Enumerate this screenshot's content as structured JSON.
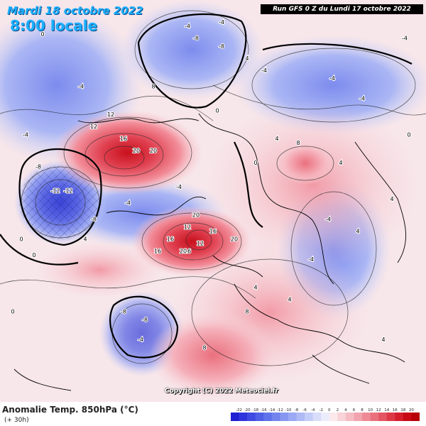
{
  "header": {
    "date_line": "Mardi 18 octobre 2022",
    "time_line": "8:00 locale",
    "run_info": "Run GFS 0 Z du Lundi 17 octobre 2022",
    "copyright": "Copyright (C) 2022 Meteociel.fr"
  },
  "footer": {
    "title": "Anomalie Temp. 850hPa (°C)",
    "subtitle": "(+ 30h)"
  },
  "legend": {
    "ticks": [
      "-22",
      "-20",
      "-18",
      "-16",
      "-14",
      "-12",
      "-10",
      "-8",
      "-6",
      "-4",
      "-2",
      "0",
      "2",
      "4",
      "6",
      "8",
      "10",
      "12",
      "14",
      "16",
      "18",
      "20"
    ],
    "colors": [
      "#1e1ed2",
      "#2e34dc",
      "#3e4ae2",
      "#4f5fe6",
      "#6072ea",
      "#7384ee",
      "#8796f0",
      "#9ba8f3",
      "#afbaf5",
      "#c4ccf8",
      "#d8ddfa",
      "#ebedfc",
      "#fbe9ec",
      "#f8d3d8",
      "#f5bcc4",
      "#f2a4ae",
      "#ee8a96",
      "#ea707d",
      "#e45462",
      "#dd3846",
      "#d41e2c",
      "#c80a16",
      "#b80008"
    ]
  },
  "map": {
    "anomaly_labels": [
      {
        "text": "12",
        "x": 22,
        "y": 32
      },
      {
        "text": "16",
        "x": 29,
        "y": 35
      },
      {
        "text": "20",
        "x": 32,
        "y": 38
      },
      {
        "text": "20",
        "x": 36,
        "y": 38
      },
      {
        "text": "12",
        "x": 26,
        "y": 29
      },
      {
        "text": "-12",
        "x": 13,
        "y": 48
      },
      {
        "text": "-12",
        "x": 16,
        "y": 48
      },
      {
        "text": "-8",
        "x": 9,
        "y": 42
      },
      {
        "text": "-8",
        "x": 22,
        "y": 55
      },
      {
        "text": "-4",
        "x": 6,
        "y": 34
      },
      {
        "text": "-4",
        "x": 19,
        "y": 22
      },
      {
        "text": "-4",
        "x": 30,
        "y": 51
      },
      {
        "text": "-4",
        "x": 42,
        "y": 47
      },
      {
        "text": "-4",
        "x": 78,
        "y": 20
      },
      {
        "text": "-4",
        "x": 85,
        "y": 25
      },
      {
        "text": "-4",
        "x": 62,
        "y": 18
      },
      {
        "text": "-4",
        "x": 73,
        "y": 65
      },
      {
        "text": "-4",
        "x": 33,
        "y": 85
      },
      {
        "text": "-4",
        "x": 77,
        "y": 55
      },
      {
        "text": "-8",
        "x": 46,
        "y": 10
      },
      {
        "text": "-8",
        "x": 29,
        "y": 78
      },
      {
        "text": "-8",
        "x": 34,
        "y": 80
      },
      {
        "text": "-8",
        "x": 52,
        "y": 12
      },
      {
        "text": "-4",
        "x": 44,
        "y": 7
      },
      {
        "text": "-4",
        "x": 52,
        "y": 6
      },
      {
        "text": "0",
        "x": 10,
        "y": 9
      },
      {
        "text": "0",
        "x": 5,
        "y": 60
      },
      {
        "text": "0",
        "x": 8,
        "y": 64
      },
      {
        "text": "0",
        "x": 3,
        "y": 78
      },
      {
        "text": "0",
        "x": 60,
        "y": 41
      },
      {
        "text": "0",
        "x": 51,
        "y": 28
      },
      {
        "text": "0",
        "x": 96,
        "y": 34
      },
      {
        "text": "4",
        "x": 20,
        "y": 60
      },
      {
        "text": "4",
        "x": 68,
        "y": 75
      },
      {
        "text": "4",
        "x": 80,
        "y": 41
      },
      {
        "text": "4",
        "x": 60,
        "y": 72
      },
      {
        "text": "4",
        "x": 90,
        "y": 85
      },
      {
        "text": "4",
        "x": 65,
        "y": 35
      },
      {
        "text": "4",
        "x": 58,
        "y": 15
      },
      {
        "text": "8",
        "x": 58,
        "y": 78
      },
      {
        "text": "8",
        "x": 48,
        "y": 87
      },
      {
        "text": "8",
        "x": 70,
        "y": 36
      },
      {
        "text": "8",
        "x": 36,
        "y": 22
      },
      {
        "text": "12",
        "x": 44,
        "y": 57
      },
      {
        "text": "16",
        "x": 40,
        "y": 60
      },
      {
        "text": "16",
        "x": 44,
        "y": 63
      },
      {
        "text": "20",
        "x": 46,
        "y": 54
      },
      {
        "text": "20",
        "x": 43,
        "y": 63
      },
      {
        "text": "20",
        "x": 55,
        "y": 60
      },
      {
        "text": "16",
        "x": 50,
        "y": 58
      },
      {
        "text": "16",
        "x": 37,
        "y": 63
      },
      {
        "text": "12",
        "x": 47,
        "y": 61
      },
      {
        "text": "4",
        "x": 84,
        "y": 58
      },
      {
        "text": "4",
        "x": 92,
        "y": 50
      },
      {
        "text": "-4",
        "x": 95,
        "y": 10
      }
    ]
  }
}
